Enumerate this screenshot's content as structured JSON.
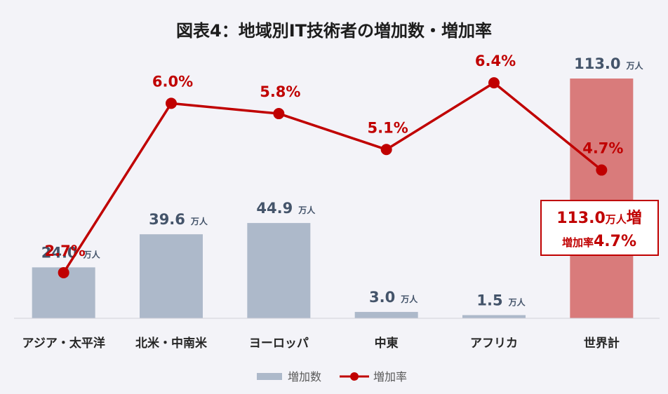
{
  "chart_data": {
    "type": "bar",
    "title": "図表4：地域別IT技術者の増加数・増加率",
    "categories": [
      "アジア・太平洋",
      "北米・中南米",
      "ヨーロッパ",
      "中東",
      "アフリカ",
      "世界計"
    ],
    "series": [
      {
        "name": "増加数",
        "type": "bar",
        "unit": "万人",
        "values": [
          24.0,
          39.6,
          44.9,
          3.0,
          1.5,
          113.0
        ],
        "labels": [
          "24.0",
          "39.6",
          "44.9",
          "3.0",
          "1.5",
          "113.0"
        ]
      },
      {
        "name": "増加率",
        "type": "line",
        "unit": "%",
        "values": [
          2.7,
          6.0,
          5.8,
          5.1,
          6.4,
          4.7
        ],
        "labels": [
          "2.7%",
          "6.0%",
          "5.8%",
          "5.1%",
          "6.4%",
          "4.7%"
        ]
      }
    ],
    "ylim_bar": [
      0,
      120
    ],
    "ylim_line": [
      0,
      8
    ],
    "gridlines": false,
    "legend_position": "bottom",
    "annotation": {
      "value": "113.0",
      "unit": "万人",
      "suffix": "増",
      "rate_label": "増加率",
      "rate_value": "4.7%"
    },
    "colors": {
      "bar": "#adb9ca",
      "bar_highlight": "#d97b7b",
      "line": "#c00000",
      "bar_label": "#44546a",
      "background": "#f3f3f8"
    }
  }
}
